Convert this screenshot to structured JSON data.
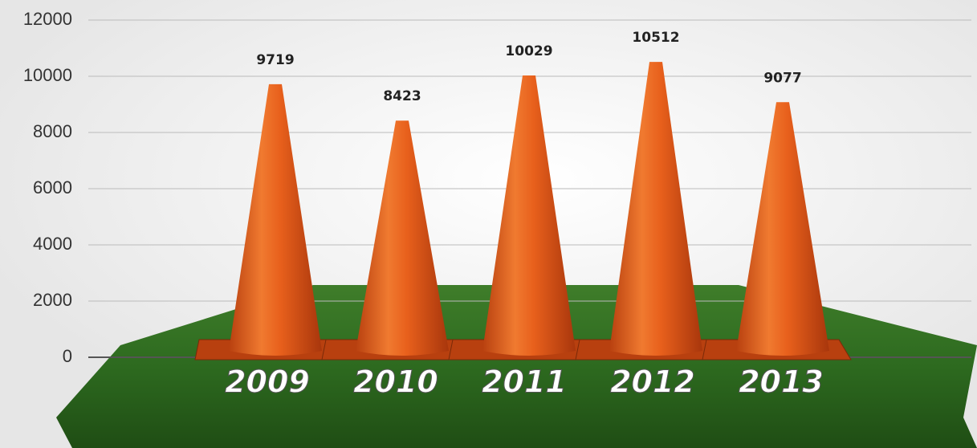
{
  "chart_data": {
    "type": "bar",
    "categories": [
      "2009",
      "2010",
      "2011",
      "2012",
      "2013"
    ],
    "values": [
      9719,
      8423,
      10029,
      10512,
      9077
    ],
    "color": "#e8601c",
    "ylim": [
      0,
      12000
    ],
    "yticks": [
      0,
      2000,
      4000,
      6000,
      8000,
      10000,
      12000
    ],
    "grid": true
  }
}
